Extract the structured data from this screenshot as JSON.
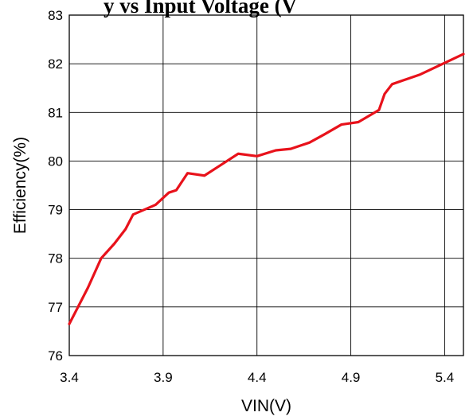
{
  "chart_data": {
    "type": "line",
    "title": "y vs Input Voltage (V",
    "xlabel": "VIN(V)",
    "ylabel": "Efficiency(%)",
    "xlim": [
      3.4,
      5.5
    ],
    "ylim": [
      76,
      83
    ],
    "x_ticks": [
      "3.4",
      "3.9",
      "4.4",
      "4.9",
      "5.4"
    ],
    "x_tick_values": [
      3.4,
      3.9,
      4.4,
      4.9,
      5.4
    ],
    "y_ticks": [
      "76",
      "77",
      "78",
      "79",
      "80",
      "81",
      "82",
      "83"
    ],
    "y_tick_values": [
      76,
      77,
      78,
      79,
      80,
      81,
      82,
      83
    ],
    "grid": true,
    "series": [
      {
        "color": "#e8121b",
        "x": [
          3.4,
          3.5,
          3.57,
          3.64,
          3.7,
          3.74,
          3.8,
          3.86,
          3.93,
          3.97,
          4.03,
          4.12,
          4.2,
          4.3,
          4.4,
          4.5,
          4.58,
          4.68,
          4.76,
          4.85,
          4.94,
          5.05,
          5.08,
          5.12,
          5.27,
          5.5
        ],
        "y": [
          76.65,
          77.4,
          78.0,
          78.3,
          78.6,
          78.9,
          79.0,
          79.1,
          79.35,
          79.4,
          79.75,
          79.7,
          79.9,
          80.15,
          80.1,
          80.22,
          80.25,
          80.38,
          80.55,
          80.75,
          80.8,
          81.05,
          81.38,
          81.58,
          81.78,
          82.2
        ]
      }
    ]
  }
}
